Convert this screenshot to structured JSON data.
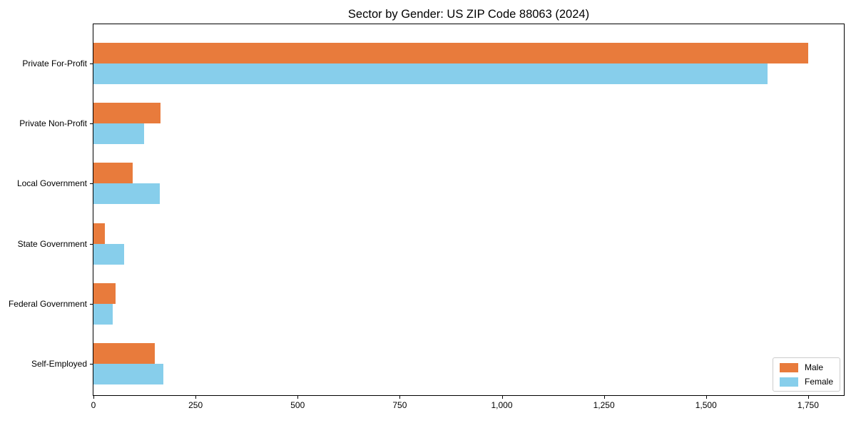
{
  "chart_data": {
    "type": "bar",
    "orientation": "horizontal",
    "title": "Sector by Gender: US ZIP Code 88063 (2024)",
    "categories": [
      "Private For-Profit",
      "Private Non-Profit",
      "Local Government",
      "State Government",
      "Federal Government",
      "Self-Employed"
    ],
    "series": [
      {
        "name": "Male",
        "color": "#E87B3C",
        "values": [
          1750,
          165,
          96,
          28,
          55,
          150
        ]
      },
      {
        "name": "Female",
        "color": "#87CEEB",
        "values": [
          1650,
          124,
          162,
          75,
          47,
          172
        ]
      }
    ],
    "x_ticks": [
      0,
      250,
      500,
      750,
      1000,
      1250,
      1500,
      1750
    ],
    "x_tick_labels": [
      "0",
      "250",
      "500",
      "750",
      "1,000",
      "1,250",
      "1,500",
      "1,750"
    ],
    "xlim": [
      0,
      1837.5
    ],
    "xlabel": "",
    "ylabel": "",
    "grid": false,
    "legend": {
      "position": "lower right"
    }
  }
}
